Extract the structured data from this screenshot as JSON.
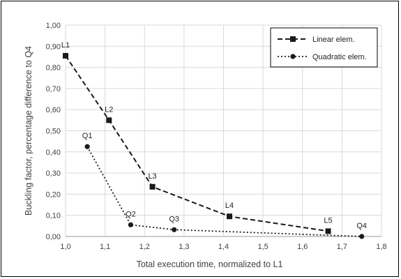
{
  "chart_data": {
    "type": "line",
    "title": "",
    "xlabel": "Total execution time, normalized to L1",
    "ylabel": "Buckling factor, percentage difference to Q4",
    "xlim": [
      1.0,
      1.8
    ],
    "ylim": [
      0.0,
      1.0
    ],
    "x_ticks": [
      "1,0",
      "1,1",
      "1,2",
      "1,3",
      "1,4",
      "1,5",
      "1,6",
      "1,7",
      "1,8"
    ],
    "y_ticks": [
      "0,00",
      "0,10",
      "0,20",
      "0,30",
      "0,40",
      "0,50",
      "0,60",
      "0,70",
      "0,80",
      "0,90",
      "1,00"
    ],
    "grid": true,
    "legend_position": "top-right",
    "series": [
      {
        "name": "Linear elem.",
        "line_style": "dashed",
        "marker": "square",
        "color": "#1a1a1a",
        "points": [
          {
            "label": "L1",
            "x": 1.0,
            "y": 0.855
          },
          {
            "label": "L2",
            "x": 1.11,
            "y": 0.55
          },
          {
            "label": "L3",
            "x": 1.22,
            "y": 0.235
          },
          {
            "label": "L4",
            "x": 1.415,
            "y": 0.095
          },
          {
            "label": "L5",
            "x": 1.665,
            "y": 0.025
          }
        ]
      },
      {
        "name": "Quadratic elem.",
        "line_style": "dotted",
        "marker": "circle",
        "color": "#1a1a1a",
        "points": [
          {
            "label": "Q1",
            "x": 1.055,
            "y": 0.425
          },
          {
            "label": "Q2",
            "x": 1.165,
            "y": 0.055
          },
          {
            "label": "Q3",
            "x": 1.275,
            "y": 0.032
          },
          {
            "label": "Q4",
            "x": 1.75,
            "y": 0.0
          }
        ]
      }
    ]
  }
}
